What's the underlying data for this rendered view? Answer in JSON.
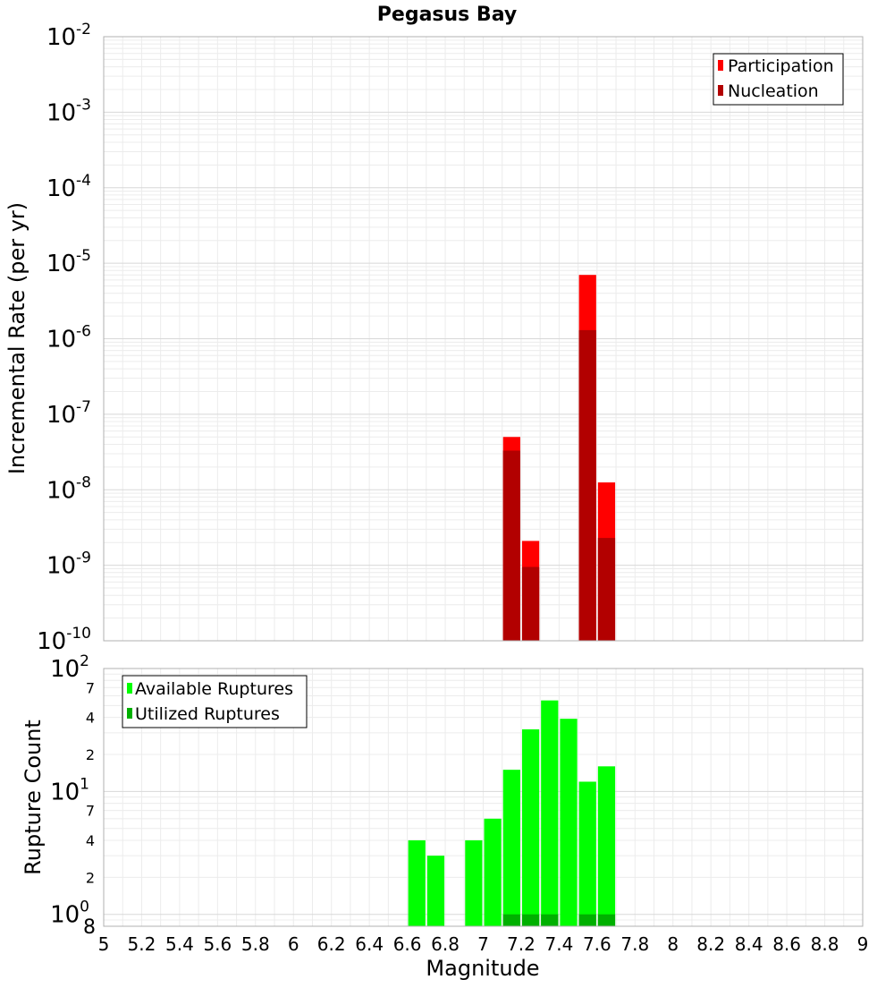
{
  "chart_data": [
    {
      "type": "bar",
      "title": "Pegasus Bay",
      "ylabel": "Incremental Rate (per yr)",
      "xlabel": "",
      "xlim": [
        5,
        9
      ],
      "ylim": [
        1e-10,
        0.01
      ],
      "yscale": "log",
      "grid": true,
      "legend_position": "top-right",
      "bin_width": 0.1,
      "x": [
        7.15,
        7.25,
        7.55,
        7.65
      ],
      "series": [
        {
          "name": "Participation",
          "color": "#ff0000",
          "values": [
            5e-08,
            2.1e-09,
            7e-06,
            1.25e-08
          ]
        },
        {
          "name": "Nucleation",
          "color": "#b20000",
          "values": [
            3.3e-08,
            9.5e-10,
            1.3e-06,
            2.3e-09
          ]
        }
      ],
      "y_ticks": [
        {
          "base": "10",
          "exp": "-10"
        },
        {
          "base": "10",
          "exp": "-9"
        },
        {
          "base": "10",
          "exp": "-8"
        },
        {
          "base": "10",
          "exp": "-7"
        },
        {
          "base": "10",
          "exp": "-6"
        },
        {
          "base": "10",
          "exp": "-5"
        },
        {
          "base": "10",
          "exp": "-4"
        },
        {
          "base": "10",
          "exp": "-3"
        },
        {
          "base": "10",
          "exp": "-2"
        }
      ]
    },
    {
      "type": "bar",
      "title": "",
      "ylabel": "Rupture Count",
      "xlabel": "Magnitude",
      "xlim": [
        5,
        9
      ],
      "ylim": [
        0.8,
        100
      ],
      "yscale": "log",
      "grid": true,
      "legend_position": "top-left",
      "bin_width": 0.1,
      "x": [
        6.65,
        6.75,
        6.95,
        7.05,
        7.15,
        7.25,
        7.35,
        7.45,
        7.55,
        7.65
      ],
      "series": [
        {
          "name": "Available Ruptures",
          "color": "#00ff00",
          "values": [
            4,
            3,
            4,
            6,
            15,
            32,
            55,
            39,
            12,
            16
          ]
        },
        {
          "name": "Utilized Ruptures",
          "color": "#00b000",
          "values": [
            0,
            0,
            0,
            0,
            1,
            1,
            1,
            0,
            1,
            1
          ]
        }
      ],
      "x_tick_labels": [
        "5",
        "5.2",
        "5.4",
        "5.6",
        "5.8",
        "6",
        "6.2",
        "6.4",
        "6.6",
        "6.8",
        "7",
        "7.2",
        "7.4",
        "7.6",
        "7.8",
        "8",
        "8.2",
        "8.4",
        "8.6",
        "8.8",
        "9"
      ],
      "y_major_ticks": [
        {
          "base": "10",
          "exp": "0"
        },
        {
          "base": "10",
          "exp": "1"
        },
        {
          "base": "10",
          "exp": "2"
        }
      ],
      "y_minor_labels": [
        {
          "value": 0.8,
          "label": "8"
        },
        {
          "value": 2,
          "label": "2"
        },
        {
          "value": 4,
          "label": "4"
        },
        {
          "value": 7,
          "label": "7"
        },
        {
          "value": 20,
          "label": "2"
        },
        {
          "value": 40,
          "label": "4"
        },
        {
          "value": 70,
          "label": "7"
        }
      ]
    }
  ]
}
